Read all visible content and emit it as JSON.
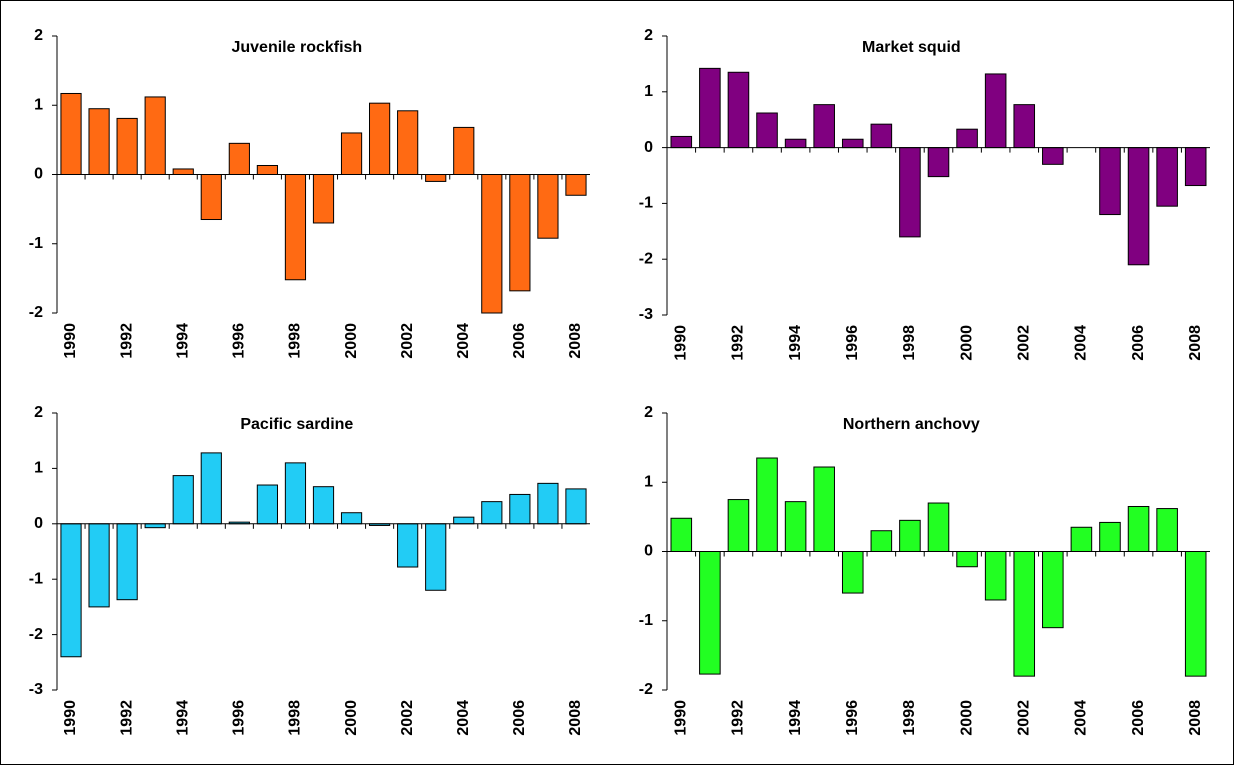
{
  "chart_data": [
    {
      "type": "bar",
      "title": "Juvenile rockfish",
      "color": "#ff6a13",
      "categories": [
        "1990",
        null,
        "1992",
        null,
        "1994",
        null,
        "1996",
        null,
        "1998",
        null,
        "2000",
        null,
        "2002",
        null,
        "2004",
        null,
        "2006",
        null,
        "2008"
      ],
      "values": [
        1.17,
        0.95,
        0.81,
        1.12,
        0.08,
        -0.65,
        0.45,
        0.13,
        -1.52,
        -0.7,
        0.6,
        1.03,
        0.92,
        -0.1,
        0.68,
        -2.0,
        -1.68,
        -0.92,
        -0.3
      ],
      "ylim": [
        -2,
        2
      ],
      "yticks": [
        -2,
        -1,
        0,
        1,
        2
      ]
    },
    {
      "type": "bar",
      "title": "Market squid",
      "color": "#800080",
      "categories": [
        "1990",
        null,
        "1992",
        null,
        "1994",
        null,
        "1996",
        null,
        "1998",
        null,
        "2000",
        null,
        "2002",
        null,
        "2004",
        null,
        "2006",
        null,
        "2008"
      ],
      "values": [
        0.2,
        1.42,
        1.35,
        0.62,
        0.15,
        0.77,
        0.15,
        0.42,
        -1.6,
        -0.52,
        0.33,
        1.32,
        0.77,
        -0.3,
        0,
        -1.2,
        -2.1,
        -1.05,
        -0.68
      ],
      "ylim": [
        -3,
        2
      ],
      "yticks": [
        -3,
        -2,
        -1,
        0,
        1,
        2
      ]
    },
    {
      "type": "bar",
      "title": "Pacific sardine",
      "color": "#22ccf5",
      "categories": [
        "1990",
        null,
        "1992",
        null,
        "1994",
        null,
        "1996",
        null,
        "1998",
        null,
        "2000",
        null,
        "2002",
        null,
        "2004",
        null,
        "2006",
        null,
        "2008"
      ],
      "values": [
        -2.4,
        -1.5,
        -1.37,
        -0.07,
        0.87,
        1.28,
        0.03,
        0.7,
        1.1,
        0.67,
        0.2,
        -0.03,
        -0.78,
        -1.2,
        0.12,
        0.4,
        0.53,
        0.73,
        0.63
      ],
      "ylim": [
        -3,
        2
      ],
      "yticks": [
        -3,
        -2,
        -1,
        0,
        1,
        2
      ]
    },
    {
      "type": "bar",
      "title": "Northern anchovy",
      "color": "#22ff22",
      "categories": [
        "1990",
        null,
        "1992",
        null,
        "1994",
        null,
        "1996",
        null,
        "1998",
        null,
        "2000",
        null,
        "2002",
        null,
        "2004",
        null,
        "2006",
        null,
        "2008"
      ],
      "values": [
        0.48,
        -1.77,
        0.75,
        1.35,
        0.72,
        1.22,
        -0.6,
        0.3,
        0.45,
        0.7,
        -0.22,
        -0.7,
        -1.8,
        -1.1,
        0.35,
        0.42,
        0.65,
        0.62,
        -1.8
      ],
      "ylim": [
        -2,
        2
      ],
      "yticks": [
        -2,
        -1,
        0,
        1,
        2
      ]
    }
  ]
}
